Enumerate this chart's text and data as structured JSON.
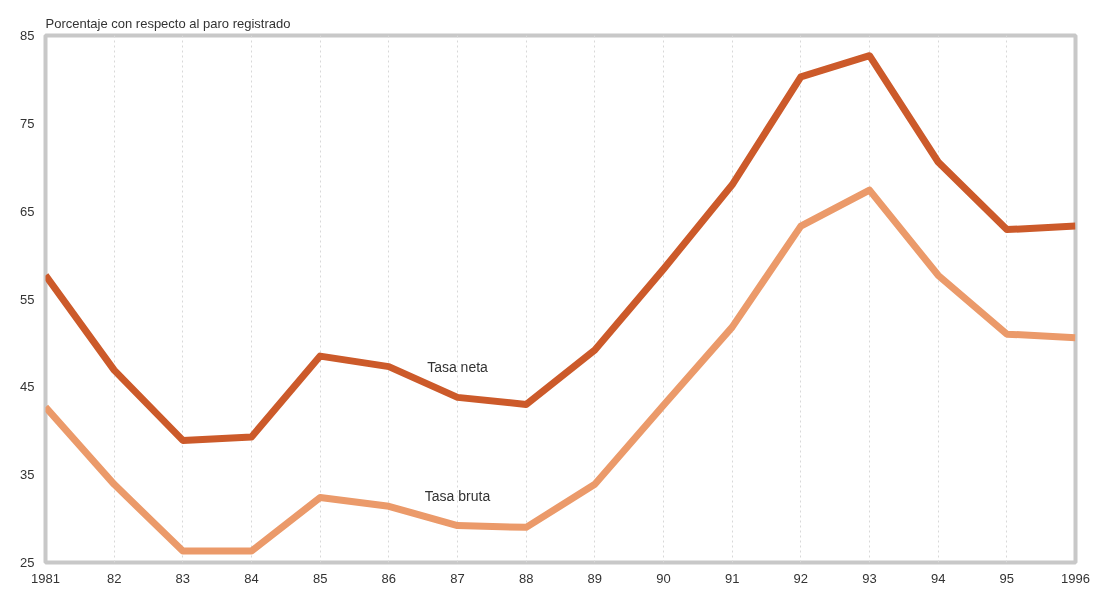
{
  "chart_data": {
    "type": "line",
    "ylabel": "Porcentaje con respecto al paro registrado",
    "categories": [
      "1981",
      "82",
      "83",
      "84",
      "85",
      "86",
      "87",
      "88",
      "89",
      "90",
      "91",
      "92",
      "93",
      "94",
      "95",
      "1996"
    ],
    "series": [
      {
        "name": "Tasa neta",
        "color": "#cc5a2a",
        "values": [
          57.7,
          46.9,
          38.9,
          39.3,
          48.5,
          47.3,
          43.8,
          43.0,
          49.2,
          58.4,
          68.0,
          80.3,
          82.7,
          70.6,
          62.9,
          63.3
        ]
      },
      {
        "name": "Tasa bruta",
        "color": "#eb9a6a",
        "values": [
          42.7,
          33.9,
          26.3,
          26.3,
          32.4,
          31.4,
          29.2,
          29.0,
          33.9,
          42.9,
          51.8,
          63.3,
          67.4,
          57.7,
          51.0,
          50.6
        ]
      }
    ],
    "ylim": [
      25,
      85
    ],
    "yticks": [
      25,
      35,
      45,
      55,
      65,
      75,
      85
    ],
    "grid": "x",
    "line_style": "solid",
    "marker": "none"
  }
}
